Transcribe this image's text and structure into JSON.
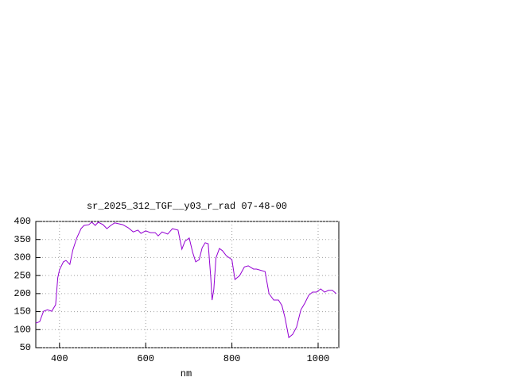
{
  "chart_data": {
    "type": "line",
    "title": "sr_2025_312_TGF__y03_r_rad 07-48-00",
    "x_label": "nm",
    "x": [
      345,
      354,
      363,
      372,
      382,
      391,
      396,
      400,
      409,
      415,
      424,
      431,
      440,
      450,
      457,
      468,
      475,
      483,
      490,
      501,
      510,
      519,
      528,
      547,
      560,
      571,
      582,
      589,
      600,
      611,
      622,
      629,
      638,
      651,
      662,
      675,
      684,
      691,
      701,
      709,
      716,
      724,
      731,
      738,
      745,
      751,
      754,
      758,
      763,
      771,
      778,
      787,
      800,
      807,
      818,
      829,
      838,
      850,
      857,
      877,
      886,
      897,
      908,
      916,
      923,
      932,
      941,
      950,
      960,
      969,
      978,
      987,
      996,
      1006,
      1015,
      1024,
      1033,
      1042
    ],
    "series": [
      {
        "color": "#9400d3",
        "values": [
          118,
          122,
          151,
          155,
          151,
          169,
          244,
          266,
          288,
          292,
          281,
          321,
          354,
          380,
          389,
          391,
          398,
          389,
          398,
          391,
          380,
          389,
          396,
          391,
          382,
          371,
          376,
          367,
          374,
          369,
          369,
          360,
          371,
          365,
          380,
          376,
          323,
          345,
          354,
          314,
          288,
          294,
          327,
          341,
          338,
          244,
          182,
          211,
          299,
          325,
          319,
          305,
          294,
          239,
          250,
          274,
          277,
          268,
          268,
          261,
          200,
          182,
          182,
          167,
          134,
          78,
          87,
          107,
          155,
          173,
          195,
          204,
          204,
          213,
          204,
          209,
          209,
          200
        ]
      }
    ],
    "xlim": [
      345,
      1048
    ],
    "ylim": [
      50,
      400
    ],
    "xticks": [
      400,
      600,
      800,
      1000
    ],
    "yticks": [
      50,
      100,
      150,
      200,
      250,
      300,
      350,
      400
    ],
    "grid": true
  }
}
